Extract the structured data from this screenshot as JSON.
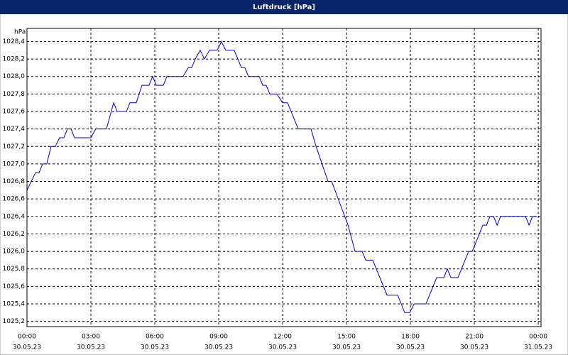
{
  "chart_data": {
    "type": "line",
    "title": "Luftdruck [hPa]",
    "y_unit": "hPa",
    "series": [
      {
        "name": "Luftdruck",
        "color": "#0000c8",
        "x": [
          0,
          0.4,
          0.57,
          0.73,
          0.93,
          1.13,
          1.33,
          1.53,
          1.73,
          1.9,
          2.07,
          2.23,
          3.0,
          3.23,
          3.73,
          4.07,
          4.23,
          4.67,
          4.83,
          5.13,
          5.4,
          5.73,
          5.9,
          6.07,
          6.4,
          6.57,
          7.33,
          7.57,
          7.73,
          7.9,
          8.13,
          8.33,
          8.57,
          8.93,
          9.13,
          9.33,
          9.73,
          10.07,
          10.23,
          10.4,
          10.9,
          11.07,
          11.23,
          11.4,
          11.73,
          12.0,
          12.23,
          12.73,
          13.33,
          13.57,
          14.13,
          14.3,
          15.07,
          15.4,
          15.73,
          15.9,
          16.23,
          16.9,
          17.4,
          17.73,
          17.97,
          18.17,
          18.73,
          19.23,
          19.57,
          19.73,
          19.9,
          20.23,
          20.73,
          20.9,
          21.4,
          21.57,
          21.73,
          21.9,
          22.07,
          22.23,
          23.4,
          23.57,
          23.73,
          23.93
        ],
        "values": [
          1026.7,
          1026.9,
          1026.9,
          1027.0,
          1027.0,
          1027.2,
          1027.2,
          1027.3,
          1027.3,
          1027.4,
          1027.4,
          1027.3,
          1027.3,
          1027.4,
          1027.4,
          1027.7,
          1027.6,
          1027.6,
          1027.7,
          1027.7,
          1027.9,
          1027.9,
          1028.0,
          1027.9,
          1027.9,
          1028.0,
          1028.0,
          1028.1,
          1028.1,
          1028.2,
          1028.3,
          1028.2,
          1028.3,
          1028.3,
          1028.4,
          1028.3,
          1028.3,
          1028.1,
          1028.1,
          1028.0,
          1028.0,
          1027.9,
          1027.9,
          1027.8,
          1027.8,
          1027.7,
          1027.7,
          1027.4,
          1027.4,
          1027.2,
          1026.8,
          1026.8,
          1026.3,
          1026.0,
          1026.0,
          1025.9,
          1025.9,
          1025.5,
          1025.5,
          1025.3,
          1025.3,
          1025.4,
          1025.4,
          1025.7,
          1025.7,
          1025.8,
          1025.7,
          1025.7,
          1026.0,
          1026.0,
          1026.3,
          1026.3,
          1026.4,
          1026.4,
          1026.3,
          1026.4,
          1026.4,
          1026.3,
          1026.4,
          1026.4
        ]
      }
    ],
    "xlim": [
      0,
      24.13
    ],
    "xticks": [
      {
        "value": 0,
        "label": "00:00",
        "date": "30.05.23"
      },
      {
        "value": 3,
        "label": "03:00",
        "date": "30.05.23"
      },
      {
        "value": 6,
        "label": "06:00",
        "date": "30.05.23"
      },
      {
        "value": 9,
        "label": "09:00",
        "date": "30.05.23"
      },
      {
        "value": 12,
        "label": "12:00",
        "date": "30.05.23"
      },
      {
        "value": 15,
        "label": "15:00",
        "date": "30.05.23"
      },
      {
        "value": 18,
        "label": "18:00",
        "date": "30.05.23"
      },
      {
        "value": 21,
        "label": "21:00",
        "date": "30.05.23"
      },
      {
        "value": 24,
        "label": "00:00",
        "date": "31.05.23"
      }
    ],
    "ylim": [
      1025.14,
      1028.55
    ],
    "yticks": [
      {
        "value": 1025.2,
        "label": "1025,2"
      },
      {
        "value": 1025.4,
        "label": "1025,4"
      },
      {
        "value": 1025.6,
        "label": "1025,6"
      },
      {
        "value": 1025.8,
        "label": "1025,8"
      },
      {
        "value": 1026.0,
        "label": "1026,0"
      },
      {
        "value": 1026.2,
        "label": "1026,2"
      },
      {
        "value": 1026.4,
        "label": "1026,4"
      },
      {
        "value": 1026.6,
        "label": "1026,6"
      },
      {
        "value": 1026.8,
        "label": "1026,8"
      },
      {
        "value": 1027.0,
        "label": "1027,0"
      },
      {
        "value": 1027.2,
        "label": "1027,2"
      },
      {
        "value": 1027.4,
        "label": "1027,4"
      },
      {
        "value": 1027.6,
        "label": "1027,6"
      },
      {
        "value": 1027.8,
        "label": "1027,8"
      },
      {
        "value": 1028.0,
        "label": "1028,0"
      },
      {
        "value": 1028.2,
        "label": "1028,2"
      },
      {
        "value": 1028.4,
        "label": "1028,4"
      }
    ],
    "grid": true
  }
}
